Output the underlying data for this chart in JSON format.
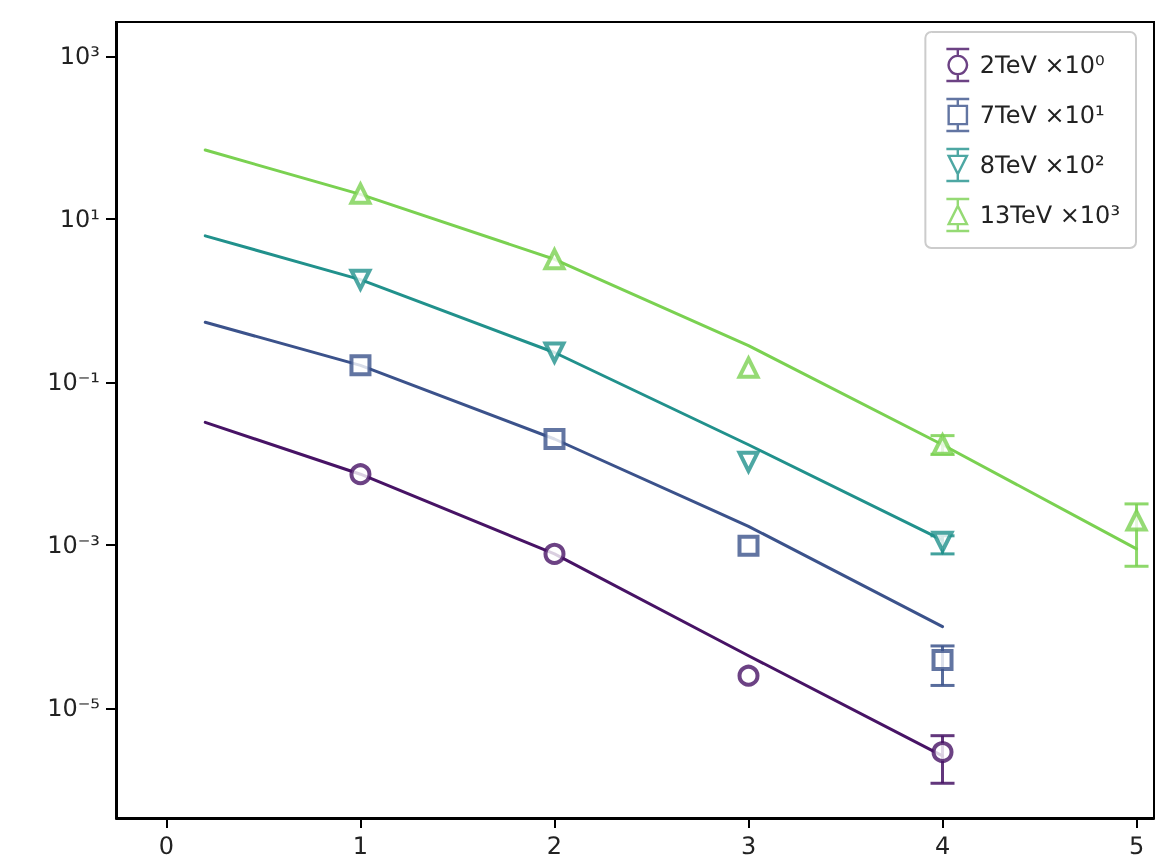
{
  "chart_data": {
    "type": "scatter",
    "log": "y",
    "legend": "top right",
    "grid": false,
    "xlim": [
      -0.26,
      5.09
    ],
    "xticks": [
      0,
      1,
      2,
      3,
      4,
      5
    ],
    "ylim": [
      4.5e-07,
      2600
    ],
    "yticks": [
      {
        "value": 1000,
        "label": "10³"
      },
      {
        "value": 10,
        "label": "10¹"
      },
      {
        "value": 0.1,
        "label": "10⁻¹"
      },
      {
        "value": 0.001,
        "label": "10⁻³"
      },
      {
        "value": 1e-05,
        "label": "10⁻⁵"
      }
    ],
    "series": [
      {
        "name": "2TeV ×10⁰",
        "marker": "circle",
        "color": "#471365",
        "x": [
          1,
          2,
          3,
          4
        ],
        "values": [
          0.0074,
          0.00078,
          2.5e-05,
          2.9e-06
        ],
        "errors": [
          null,
          null,
          null,
          [
            1.2e-06,
            4.6e-06
          ]
        ]
      },
      {
        "name": "7TeV ×10¹",
        "marker": "square",
        "color": "#3b528b",
        "x": [
          1,
          2,
          3,
          4
        ],
        "values": [
          0.16,
          0.02,
          0.00098,
          3.9e-05
        ],
        "errors": [
          null,
          null,
          null,
          [
            1.9e-05,
            5.8e-05
          ]
        ]
      },
      {
        "name": "8TeV ×10²",
        "marker": "triangle_down",
        "color": "#21918c",
        "x": [
          1,
          2,
          3,
          4
        ],
        "values": [
          1.8,
          0.23,
          0.0105,
          0.0011
        ],
        "errors": [
          null,
          null,
          null,
          [
            0.00078,
            0.0013
          ]
        ]
      },
      {
        "name": "13TeV ×10³",
        "marker": "triangle",
        "color": "#7ad151",
        "x": [
          1,
          2,
          3,
          4,
          5
        ],
        "values": [
          20.4,
          3.2,
          0.15,
          0.017,
          0.002
        ],
        "errors": [
          null,
          null,
          null,
          [
            0.013,
            0.022
          ],
          [
            0.00055,
            0.0032
          ]
        ]
      },
      {
        "type": "line",
        "color": "#471365",
        "x": [
          0.2,
          1,
          2,
          3,
          4
        ],
        "values": [
          0.032,
          0.0074,
          0.00078,
          4.4e-05,
          2.6e-06
        ]
      },
      {
        "type": "line",
        "color": "#3b528b",
        "x": [
          0.2,
          1,
          2,
          3,
          4
        ],
        "values": [
          0.54,
          0.16,
          0.02,
          0.0017,
          0.0001
        ]
      },
      {
        "type": "line",
        "color": "#21918c",
        "x": [
          0.2,
          1,
          2,
          3,
          4
        ],
        "values": [
          6.2,
          1.8,
          0.23,
          0.017,
          0.00115
        ]
      },
      {
        "type": "line",
        "color": "#7ad151",
        "x": [
          0.2,
          1,
          2,
          3,
          4,
          5
        ],
        "values": [
          70,
          20,
          3.2,
          0.28,
          0.017,
          0.0009
        ]
      }
    ]
  }
}
